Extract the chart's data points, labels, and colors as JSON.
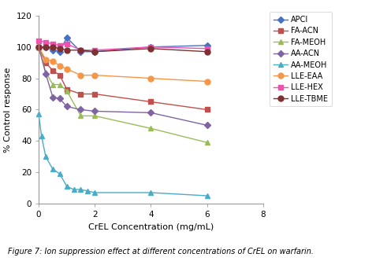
{
  "xlabel": "CrEL Concentration (mg/mL)",
  "ylabel": "% Control response",
  "xlim": [
    0,
    8
  ],
  "ylim": [
    0,
    120
  ],
  "xticks": [
    0,
    2,
    4,
    6,
    8
  ],
  "yticks": [
    0,
    20,
    40,
    60,
    80,
    100,
    120
  ],
  "series": [
    {
      "label": "APCI",
      "color": "#4472c4",
      "marker": "D",
      "markersize": 4,
      "x": [
        0,
        0.25,
        0.5,
        0.75,
        1.0,
        1.5,
        2.0,
        4.0,
        6.0
      ],
      "y": [
        100,
        100,
        98,
        97,
        106,
        97,
        97,
        100,
        101
      ]
    },
    {
      "label": "FA-ACN",
      "color": "#c0504d",
      "marker": "s",
      "markersize": 5,
      "x": [
        0,
        0.25,
        0.5,
        0.75,
        1.0,
        1.5,
        2.0,
        4.0,
        6.0
      ],
      "y": [
        100,
        90,
        85,
        82,
        73,
        70,
        70,
        65,
        60
      ]
    },
    {
      "label": "FA-MEOH",
      "color": "#9bbb59",
      "marker": "^",
      "markersize": 5,
      "x": [
        0,
        0.25,
        0.5,
        0.75,
        1.0,
        1.5,
        2.0,
        4.0,
        6.0
      ],
      "y": [
        100,
        84,
        76,
        76,
        72,
        56,
        56,
        48,
        39
      ]
    },
    {
      "label": "AA-ACN",
      "color": "#8064a2",
      "marker": "D",
      "markersize": 4,
      "x": [
        0,
        0.25,
        0.5,
        0.75,
        1.0,
        1.5,
        2.0,
        4.0,
        6.0
      ],
      "y": [
        100,
        83,
        68,
        67,
        62,
        60,
        59,
        58,
        50
      ]
    },
    {
      "label": "AA-MEOH",
      "color": "#4bacc6",
      "marker": "^",
      "markersize": 5,
      "x": [
        0,
        0.1,
        0.25,
        0.5,
        0.75,
        1.0,
        1.25,
        1.5,
        1.75,
        2.0,
        4.0,
        6.0
      ],
      "y": [
        57,
        43,
        30,
        22,
        19,
        11,
        9,
        9,
        8,
        7,
        7,
        5
      ]
    },
    {
      "label": "LLE-EAA",
      "color": "#f79646",
      "marker": "o",
      "markersize": 5,
      "x": [
        0,
        0.25,
        0.5,
        0.75,
        1.0,
        1.5,
        2.0,
        4.0,
        6.0
      ],
      "y": [
        100,
        92,
        91,
        88,
        86,
        82,
        82,
        80,
        78
      ]
    },
    {
      "label": "LLE-HEX",
      "color": "#f050b0",
      "marker": "s",
      "markersize": 5,
      "x": [
        0,
        0.25,
        0.5,
        0.75,
        1.0,
        1.5,
        2.0,
        4.0,
        6.0
      ],
      "y": [
        104,
        103,
        102,
        101,
        102,
        98,
        98,
        100,
        99
      ]
    },
    {
      "label": "LLE-TBME",
      "color": "#7f3030",
      "marker": "o",
      "markersize": 5,
      "x": [
        0,
        0.25,
        0.5,
        0.75,
        1.0,
        1.5,
        2.0,
        4.0,
        6.0
      ],
      "y": [
        100,
        100,
        100,
        99,
        98,
        98,
        97,
        99,
        97
      ]
    }
  ],
  "background_color": "#ffffff",
  "figure_caption": "Figure 7: Ion suppression effect at different concentrations of CrEL on warfarin.",
  "legend_fontsize": 7,
  "axis_fontsize": 8,
  "tick_fontsize": 7.5,
  "caption_fontsize": 7
}
